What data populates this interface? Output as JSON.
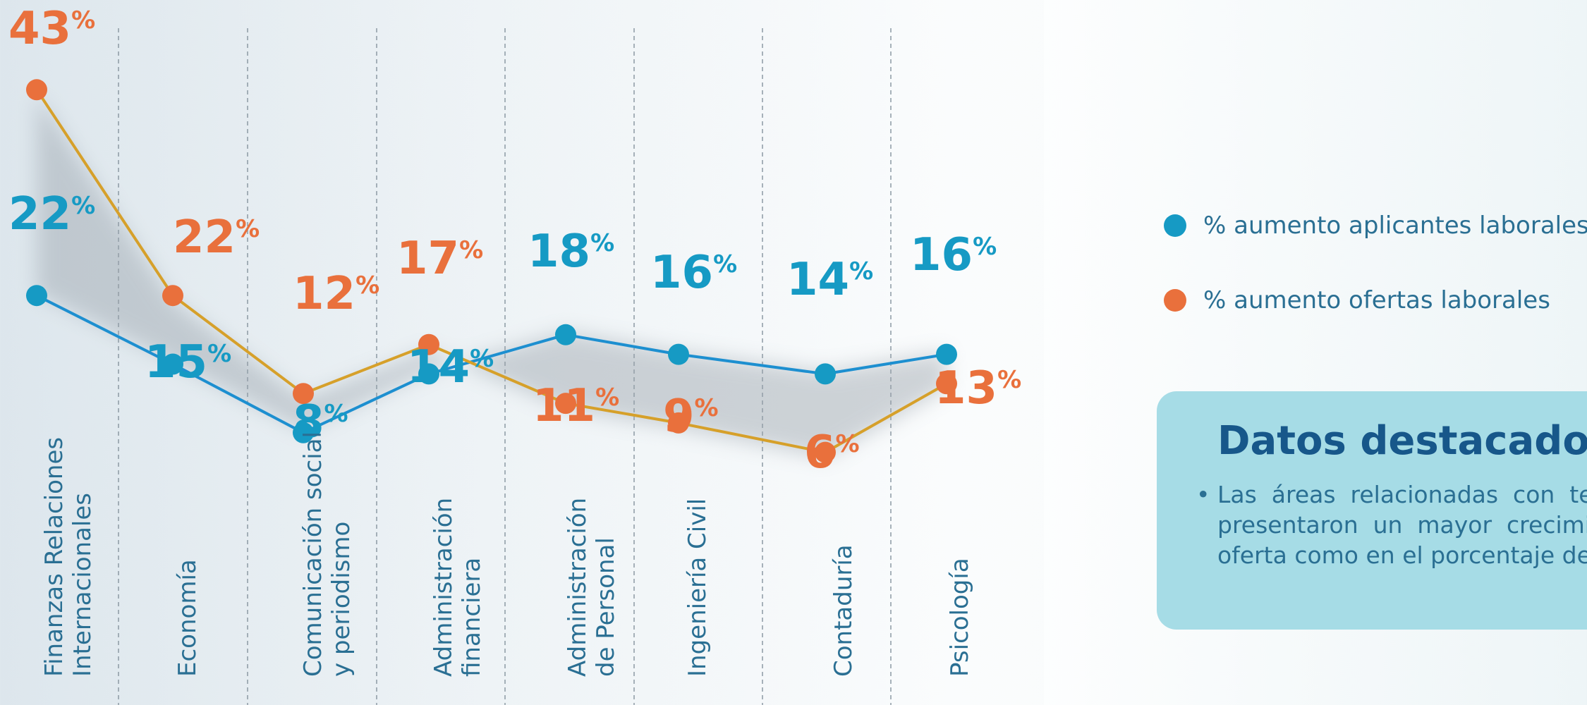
{
  "colors": {
    "blue": "#169ac4",
    "orange": "#e9703c",
    "blue_line": "#1d8fd0",
    "orange_line": "#d6a02a"
  },
  "chart_data": {
    "type": "line",
    "categories": [
      "Finanzas Relaciones Internacionales",
      "Economía",
      "Comunicación social y periodismo",
      "Administración financiera",
      "Administración de Personal",
      "Ingeniería Civil",
      "Contaduría",
      "Psicología"
    ],
    "category_lines": [
      [
        "Finanzas Relaciones",
        "Internacionales"
      ],
      [
        "Economía"
      ],
      [
        "Comunicación social",
        "y periodismo"
      ],
      [
        "Administración",
        "financiera"
      ],
      [
        "Administración",
        "de Personal"
      ],
      [
        "Ingeniería Civil"
      ],
      [
        "Contaduría"
      ],
      [
        "Psicología"
      ]
    ],
    "series": [
      {
        "name": "% aumento aplicantes laborales",
        "color": "#169ac4",
        "values": [
          22,
          15,
          8,
          14,
          18,
          16,
          14,
          16
        ]
      },
      {
        "name": "% aumento ofertas laborales",
        "color": "#e9703c",
        "values": [
          43,
          22,
          12,
          17,
          11,
          9,
          6,
          13
        ]
      }
    ],
    "value_suffix": "%",
    "grid": "vertical-dashed",
    "legend_position": "right"
  },
  "legend": {
    "items": [
      {
        "label": "% aumento aplicantes laborales",
        "color": "#169ac4"
      },
      {
        "label": "% aumento ofertas laborales",
        "color": "#e9703c"
      }
    ]
  },
  "highlights": {
    "title": "Datos destacados:",
    "bullet_lines": [
      "Las  áreas  relacionadas  con  te",
      "presentaron  un  mayor  crecimie",
      "oferta como en el porcentaje de"
    ]
  }
}
